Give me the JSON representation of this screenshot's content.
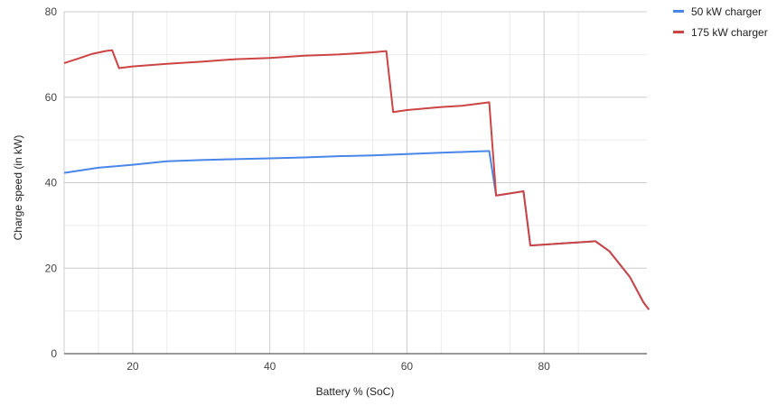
{
  "chart_data": {
    "type": "line",
    "title": "",
    "xlabel": "Battery % (SoC)",
    "ylabel": "Charge speed (in kW)",
    "xlim": [
      10,
      95
    ],
    "ylim": [
      0,
      80
    ],
    "x_ticks": [
      20,
      40,
      60,
      80
    ],
    "y_ticks": [
      0,
      20,
      40,
      60,
      80
    ],
    "x_tick_labels": [
      "20",
      "40",
      "60",
      "80"
    ],
    "y_tick_labels": [
      "0",
      "20",
      "40",
      "60",
      "80"
    ],
    "grid": true,
    "minor_grid": true,
    "legend_position": "right",
    "series": [
      {
        "name": "50 kW charger",
        "color": "#4a86e8",
        "points": [
          [
            10,
            42.3
          ],
          [
            15,
            43.5
          ],
          [
            20,
            44.2
          ],
          [
            25,
            45.0
          ],
          [
            30,
            45.3
          ],
          [
            35,
            45.5
          ],
          [
            40,
            45.7
          ],
          [
            45,
            45.9
          ],
          [
            50,
            46.2
          ],
          [
            55,
            46.4
          ],
          [
            60,
            46.7
          ],
          [
            65,
            47.0
          ],
          [
            70,
            47.3
          ],
          [
            72,
            47.4
          ],
          [
            73,
            37.0
          ],
          [
            77,
            38.0
          ],
          [
            78,
            25.3
          ],
          [
            87.5,
            26.3
          ],
          [
            89.5,
            24.0
          ],
          [
            92.5,
            18.0
          ],
          [
            94.5,
            12.0
          ],
          [
            95.3,
            10.3
          ]
        ]
      },
      {
        "name": "175 kW charger",
        "color": "#cc4444",
        "points": [
          [
            10,
            68.0
          ],
          [
            12,
            69.0
          ],
          [
            14,
            70.1
          ],
          [
            16,
            70.8
          ],
          [
            17,
            71.0
          ],
          [
            18,
            66.8
          ],
          [
            20,
            67.2
          ],
          [
            25,
            67.8
          ],
          [
            30,
            68.3
          ],
          [
            35,
            68.9
          ],
          [
            40,
            69.2
          ],
          [
            45,
            69.7
          ],
          [
            50,
            70.0
          ],
          [
            55,
            70.5
          ],
          [
            57,
            70.8
          ],
          [
            58,
            56.5
          ],
          [
            60,
            57.0
          ],
          [
            65,
            57.7
          ],
          [
            68,
            58.0
          ],
          [
            72,
            58.8
          ],
          [
            73,
            37.0
          ],
          [
            77,
            38.0
          ],
          [
            78,
            25.3
          ],
          [
            87.5,
            26.3
          ],
          [
            89.5,
            24.0
          ],
          [
            92.5,
            18.0
          ],
          [
            94.5,
            12.0
          ],
          [
            95.3,
            10.3
          ]
        ]
      }
    ]
  }
}
